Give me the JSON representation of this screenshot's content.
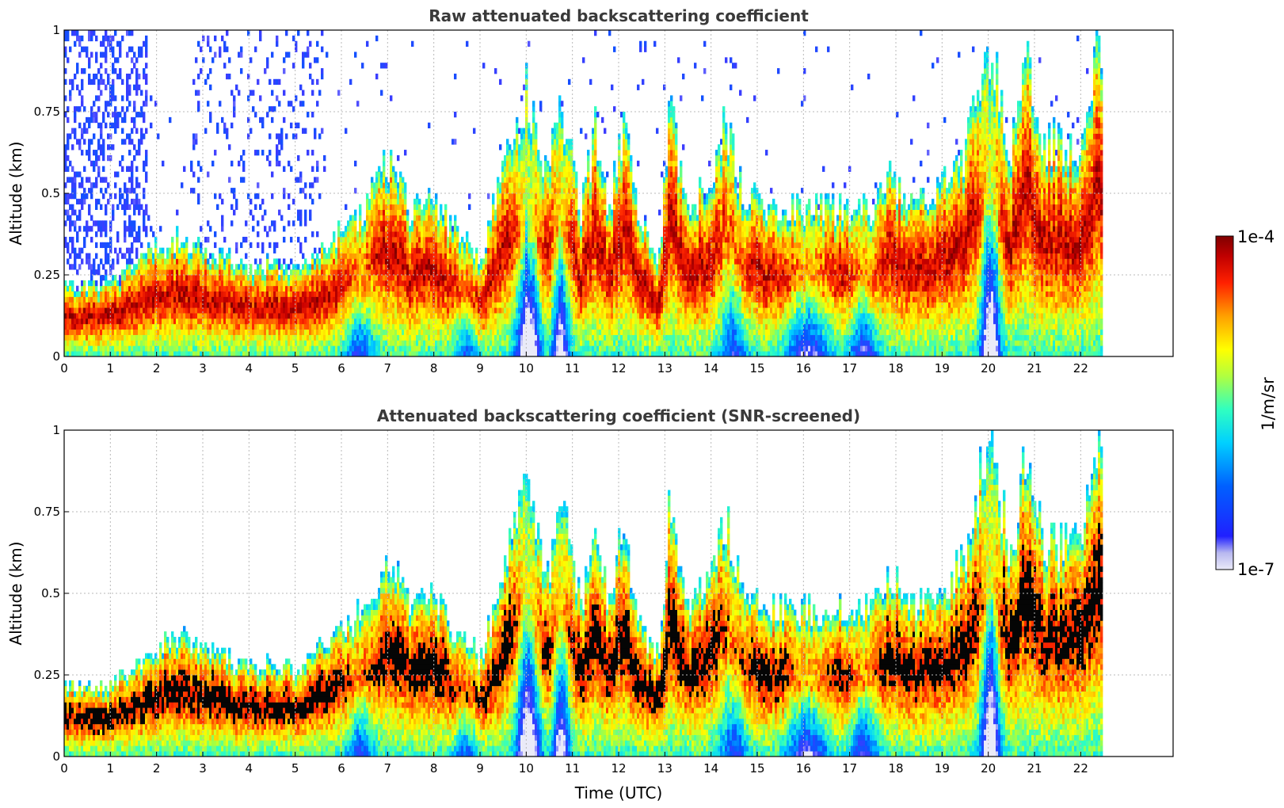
{
  "chart_data": [
    {
      "type": "heatmap",
      "id": "raw",
      "title": "Raw attenuated backscattering coefficient",
      "xlabel": "",
      "ylabel": "Altitude (km)",
      "xlim": [
        0,
        24
      ],
      "ylim": [
        0,
        1
      ],
      "x_ticks": [
        0,
        1,
        2,
        3,
        4,
        5,
        6,
        7,
        8,
        9,
        10,
        11,
        12,
        13,
        14,
        15,
        16,
        17,
        18,
        19,
        20,
        21,
        22
      ],
      "y_ticks": [
        0,
        0.25,
        0.5,
        0.75,
        1
      ],
      "y_tick_labels": [
        "0",
        "0.25",
        "0.5",
        "0.75",
        "1"
      ],
      "grid": true,
      "data_end_time": 22.5,
      "layer_top_km": [
        {
          "t": 0.0,
          "top": 0.22
        },
        {
          "t": 0.5,
          "top": 0.21
        },
        {
          "t": 1.0,
          "top": 0.22
        },
        {
          "t": 1.5,
          "top": 0.27
        },
        {
          "t": 2.0,
          "top": 0.34
        },
        {
          "t": 2.5,
          "top": 0.36
        },
        {
          "t": 3.0,
          "top": 0.32
        },
        {
          "t": 3.5,
          "top": 0.3
        },
        {
          "t": 4.0,
          "top": 0.27
        },
        {
          "t": 4.5,
          "top": 0.28
        },
        {
          "t": 5.0,
          "top": 0.27
        },
        {
          "t": 5.5,
          "top": 0.33
        },
        {
          "t": 6.0,
          "top": 0.38
        },
        {
          "t": 6.5,
          "top": 0.45
        },
        {
          "t": 7.0,
          "top": 0.6
        },
        {
          "t": 7.5,
          "top": 0.45
        },
        {
          "t": 8.0,
          "top": 0.48
        },
        {
          "t": 8.5,
          "top": 0.38
        },
        {
          "t": 9.0,
          "top": 0.3
        },
        {
          "t": 9.5,
          "top": 0.55
        },
        {
          "t": 10.0,
          "top": 0.82
        },
        {
          "t": 10.4,
          "top": 0.55
        },
        {
          "t": 10.8,
          "top": 0.76
        },
        {
          "t": 11.2,
          "top": 0.45
        },
        {
          "t": 11.5,
          "top": 0.7
        },
        {
          "t": 11.8,
          "top": 0.45
        },
        {
          "t": 12.1,
          "top": 0.7
        },
        {
          "t": 12.5,
          "top": 0.4
        },
        {
          "t": 12.9,
          "top": 0.3
        },
        {
          "t": 13.1,
          "top": 0.8
        },
        {
          "t": 13.5,
          "top": 0.45
        },
        {
          "t": 14.0,
          "top": 0.55
        },
        {
          "t": 14.3,
          "top": 0.74
        },
        {
          "t": 14.7,
          "top": 0.48
        },
        {
          "t": 15.5,
          "top": 0.45
        },
        {
          "t": 16.5,
          "top": 0.45
        },
        {
          "t": 17.5,
          "top": 0.45
        },
        {
          "t": 17.8,
          "top": 0.55
        },
        {
          "t": 18.5,
          "top": 0.46
        },
        {
          "t": 19.5,
          "top": 0.6
        },
        {
          "t": 20.0,
          "top": 0.98
        },
        {
          "t": 20.5,
          "top": 0.62
        },
        {
          "t": 20.8,
          "top": 0.92
        },
        {
          "t": 21.2,
          "top": 0.65
        },
        {
          "t": 22.0,
          "top": 0.65
        },
        {
          "t": 22.4,
          "top": 0.99
        }
      ]
    },
    {
      "type": "heatmap",
      "id": "snr",
      "title": "Attenuated backscattering coefficient (SNR-screened)",
      "xlabel": "Time (UTC)",
      "ylabel": "Altitude (km)",
      "xlim": [
        0,
        24
      ],
      "ylim": [
        0,
        1
      ],
      "x_ticks": [
        0,
        1,
        2,
        3,
        4,
        5,
        6,
        7,
        8,
        9,
        10,
        11,
        12,
        13,
        14,
        15,
        16,
        17,
        18,
        19,
        20,
        21,
        22
      ],
      "y_ticks": [
        0,
        0.25,
        0.5,
        0.75,
        1
      ],
      "y_tick_labels": [
        "0",
        "0.25",
        "0.5",
        "0.75",
        "1"
      ],
      "grid": true,
      "data_end_time": 22.5
    }
  ],
  "colorbar": {
    "label": "1/m/sr",
    "max_label": "1e-4",
    "min_label": "1e-7",
    "scale": "log",
    "colormap": [
      "#e8e8f8",
      "#0000ff",
      "#00bfff",
      "#00ffcc",
      "#aaff00",
      "#ffff00",
      "#ffa500",
      "#ff3000",
      "#b00000",
      "#800000"
    ]
  }
}
